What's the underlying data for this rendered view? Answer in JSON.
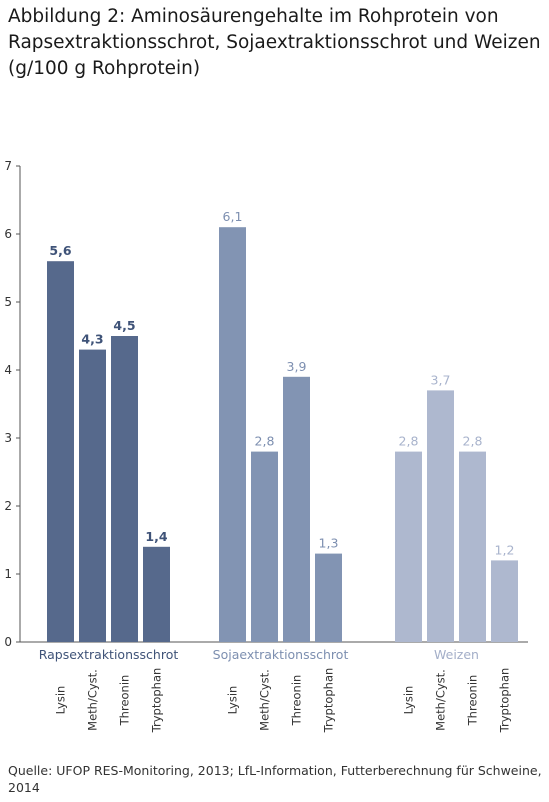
{
  "title": "Abbildung 2: Aminosäurengehalte im Rohprotein von Rapsextraktionsschrot, Sojaextraktionsschrot und Weizen (g/100 g Rohprotein)",
  "source": "Quelle: UFOP RES-Monitoring, 2013; LfL-Information, Futterberechnung für Schweine, 2014",
  "chart_data": {
    "type": "bar",
    "categories": [
      "Lysin",
      "Meth/Cyst.",
      "Threonin",
      "Tryptophan"
    ],
    "series": [
      {
        "name": "Rapsextraktionsschrot",
        "values": [
          5.6,
          4.3,
          4.5,
          1.4
        ],
        "labels": [
          "5,6",
          "4,3",
          "4,5",
          "1,4"
        ],
        "color": "#56698c"
      },
      {
        "name": "Sojaextraktionsschrot",
        "values": [
          6.1,
          2.8,
          3.9,
          1.3
        ],
        "labels": [
          "6,1",
          "2,8",
          "3,9",
          "1,3"
        ],
        "color": "#8294b3"
      },
      {
        "name": "Weizen",
        "values": [
          2.8,
          3.7,
          2.8,
          1.2
        ],
        "labels": [
          "2,8",
          "3,7",
          "2,8",
          "1,2"
        ],
        "color": "#aeb8cf"
      }
    ],
    "yticks": [
      "0",
      "1",
      "2",
      "3",
      "4",
      "5",
      "6",
      "7"
    ],
    "ylim": [
      0,
      7
    ],
    "grid": false,
    "legend": "below bars, one label per group"
  }
}
